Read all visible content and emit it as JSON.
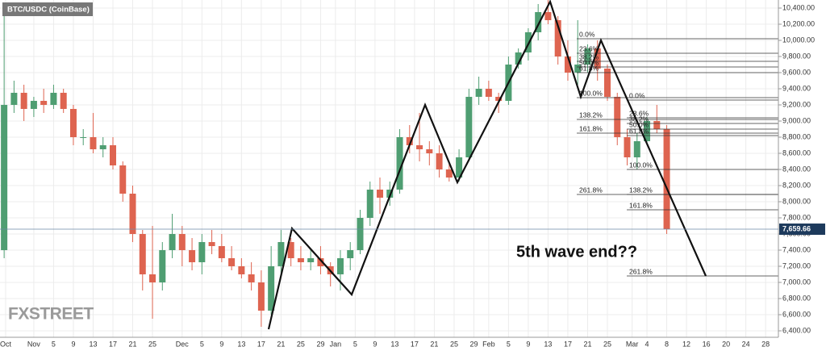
{
  "chart_data": {
    "type": "candlestick",
    "title": "BTC/USDC (CoinBase)",
    "logo": "FXSTREET",
    "annotation": "5th wave end??",
    "up_color": "#4f9e72",
    "down_color": "#de6450",
    "grid": true,
    "xticks": [
      "Oct",
      "Nov",
      "5",
      "9",
      "13",
      "17",
      "21",
      "25",
      "Dec",
      "5",
      "9",
      "13",
      "17",
      "21",
      "25",
      "29",
      "Jan",
      "5",
      "9",
      "13",
      "17",
      "21",
      "25",
      "29",
      "Feb",
      "5",
      "9",
      "13",
      "17",
      "21",
      "25",
      "Mar",
      "4",
      "8",
      "12",
      "16",
      "20",
      "24",
      "28"
    ],
    "ylim": [
      6320,
      10500
    ],
    "yticks": [
      {
        "value": 6400,
        "label": "6,400.00"
      },
      {
        "value": 6600,
        "label": "6,600.00"
      },
      {
        "value": 6800,
        "label": "6,800.00"
      },
      {
        "value": 7000,
        "label": "7,000.00"
      },
      {
        "value": 7200,
        "label": "7,200.00"
      },
      {
        "value": 7400,
        "label": "7,400.00"
      },
      {
        "value": 7600,
        "label": "7,600.00"
      },
      {
        "value": 7800,
        "label": "7,800.00"
      },
      {
        "value": 8000,
        "label": "8,000.00"
      },
      {
        "value": 8200,
        "label": "8,200.00"
      },
      {
        "value": 8400,
        "label": "8,400.00"
      },
      {
        "value": 8600,
        "label": "8,600.00"
      },
      {
        "value": 8800,
        "label": "8,800.00"
      },
      {
        "value": 9000,
        "label": "9,000.00"
      },
      {
        "value": 9200,
        "label": "9,200.00"
      },
      {
        "value": 9400,
        "label": "9,400.00"
      },
      {
        "value": 9600,
        "label": "9,600.00"
      },
      {
        "value": 9800,
        "label": "9,800.00"
      },
      {
        "value": 10000,
        "label": "10,000.00"
      },
      {
        "value": 10200,
        "label": "10,200.00"
      },
      {
        "value": 10400,
        "label": "10,400.00"
      }
    ],
    "last_price": {
      "value": 7659.66,
      "label": "7,659.66"
    },
    "open": [
      7400,
      9200,
      9350,
      9150,
      9250,
      9200,
      9350,
      9150,
      8800,
      8800,
      8650,
      8700,
      8450,
      8100,
      7600,
      7100,
      7000,
      7400,
      7600,
      7400,
      7250,
      7500,
      7450,
      7300,
      7200,
      7100,
      7000,
      6650,
      7200,
      7500,
      7300,
      7250,
      7300,
      7200,
      7100,
      7300,
      7400,
      7800,
      8150,
      8050,
      8150,
      8800,
      8700,
      8650,
      8600,
      8400,
      8300,
      8550,
      9300,
      9400,
      9300,
      9250,
      9700,
      9850,
      10100,
      10350,
      10250,
      9800,
      9600,
      9700,
      9900,
      9650,
      9300,
      8800,
      8550,
      8750,
      9000,
      8900
    ],
    "high": [
      10400,
      9500,
      9450,
      9300,
      9400,
      9450,
      9400,
      9200,
      8900,
      9100,
      8800,
      8800,
      8500,
      8200,
      7650,
      7700,
      7500,
      7850,
      7700,
      7550,
      7600,
      7650,
      7600,
      7450,
      7300,
      7250,
      7150,
      7450,
      7650,
      7550,
      7450,
      7400,
      7450,
      7250,
      7400,
      7500,
      7900,
      8250,
      8300,
      8250,
      8900,
      8950,
      9100,
      8750,
      8700,
      8500,
      8650,
      9400,
      9550,
      9500,
      9350,
      9800,
      9900,
      10150,
      10450,
      10500,
      10300,
      10000,
      10250,
      9950,
      10000,
      9700,
      9350,
      8900,
      8850,
      9050,
      9200,
      8950
    ],
    "low": [
      7300,
      9100,
      9000,
      9050,
      9100,
      9150,
      9100,
      8700,
      8700,
      8600,
      8550,
      8400,
      8000,
      7500,
      6900,
      6550,
      6900,
      7300,
      7200,
      7150,
      7100,
      7350,
      7250,
      7150,
      7050,
      6900,
      6450,
      6600,
      7100,
      7200,
      7150,
      7150,
      7100,
      6950,
      6900,
      7150,
      7350,
      7700,
      7850,
      7950,
      8100,
      8600,
      8500,
      8450,
      8300,
      8250,
      8250,
      8500,
      9200,
      9250,
      9100,
      9200,
      9650,
      9750,
      10000,
      10200,
      9700,
      9500,
      9450,
      9600,
      9500,
      9250,
      8700,
      8450,
      8400,
      8700,
      8850,
      7600
    ],
    "close": [
      9200,
      9350,
      9150,
      9250,
      9200,
      9350,
      9150,
      8800,
      8800,
      8650,
      8700,
      8450,
      8100,
      7600,
      7100,
      7000,
      7400,
      7600,
      7400,
      7250,
      7500,
      7450,
      7300,
      7200,
      7100,
      7000,
      6650,
      7200,
      7500,
      7300,
      7250,
      7300,
      7200,
      7100,
      7300,
      7400,
      7800,
      8150,
      8050,
      8150,
      8800,
      8700,
      8650,
      8600,
      8400,
      8300,
      8550,
      9300,
      9400,
      9300,
      9250,
      9700,
      9850,
      10100,
      10350,
      10250,
      9800,
      9600,
      9700,
      9900,
      9650,
      9300,
      8800,
      8550,
      8750,
      9000,
      8900,
      7659.66
    ],
    "fib_sets": [
      {
        "levels": [
          {
            "value": 10020,
            "label": "0.0%"
          },
          {
            "value": 9840,
            "label": "23.6%"
          },
          {
            "value": 9740,
            "label": "38.2%"
          },
          {
            "value": 9670,
            "label": "50.0%"
          },
          {
            "value": 9600,
            "label": "61.8%"
          },
          {
            "value": 9290,
            "label": "100.0%"
          },
          {
            "value": 9020,
            "label": "138.2%"
          },
          {
            "value": 8850,
            "label": "161.8%"
          },
          {
            "value": 8090,
            "label": "261.8%"
          }
        ]
      },
      {
        "levels": [
          {
            "value": 9260,
            "label": "0.0%"
          },
          {
            "value": 9040,
            "label": "23.6%"
          },
          {
            "value": 8970,
            "label": "38.2%"
          },
          {
            "value": 8900,
            "label": "50.0%"
          },
          {
            "value": 8820,
            "label": "61.8%"
          },
          {
            "value": 8400,
            "label": "100.0%"
          },
          {
            "value": 8090,
            "label": "138.2%"
          },
          {
            "value": 7900,
            "label": "161.8%"
          },
          {
            "value": 7080,
            "label": "261.8%"
          }
        ]
      }
    ]
  }
}
